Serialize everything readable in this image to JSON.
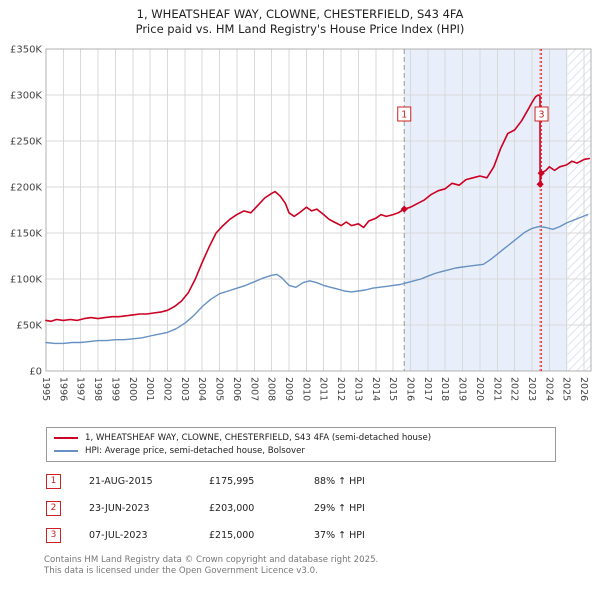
{
  "title": {
    "line1": "1, WHEATSHEAF WAY, CLOWNE, CHESTERFIELD, S43 4FA",
    "line2": "Price paid vs. HM Land Registry's House Price Index (HPI)"
  },
  "chart_data": {
    "type": "line",
    "title": "1, WHEATSHEAF WAY, CLOWNE, CHESTERFIELD, S43 4FA — Price paid vs. HM Land Registry's House Price Index (HPI)",
    "xlabel": "",
    "ylabel": "",
    "x_range": [
      1995,
      2026.4
    ],
    "y_range_k": [
      0,
      350
    ],
    "y_unit": "GBP_thousands",
    "grid": true,
    "legend_position": "bottom",
    "y_ticks": [
      {
        "v": 0,
        "label": "£0"
      },
      {
        "v": 50,
        "label": "£50K"
      },
      {
        "v": 100,
        "label": "£100K"
      },
      {
        "v": 150,
        "label": "£150K"
      },
      {
        "v": 200,
        "label": "£200K"
      },
      {
        "v": 250,
        "label": "£250K"
      },
      {
        "v": 300,
        "label": "£300K"
      },
      {
        "v": 350,
        "label": "£350K"
      }
    ],
    "x_ticks": [
      1995,
      1996,
      1997,
      1998,
      1999,
      2000,
      2001,
      2002,
      2003,
      2004,
      2005,
      2006,
      2007,
      2008,
      2009,
      2010,
      2011,
      2012,
      2013,
      2014,
      2015,
      2016,
      2017,
      2018,
      2019,
      2020,
      2021,
      2022,
      2023,
      2024,
      2025,
      2026
    ],
    "shaded_from": 2015.64,
    "hatch_from": 2025.05,
    "shade_color": "#e9effa",
    "hatch_color": "#c9d6e6",
    "series": [
      {
        "name": "1, WHEATSHEAF WAY, CLOWNE, CHESTERFIELD, S43 4FA (semi-detached house)",
        "color": "#cc0022",
        "width": 1.6,
        "points": [
          [
            1995.0,
            55
          ],
          [
            1995.3,
            54
          ],
          [
            1995.6,
            56
          ],
          [
            1996.0,
            55
          ],
          [
            1996.4,
            56
          ],
          [
            1996.8,
            55
          ],
          [
            1997.2,
            57
          ],
          [
            1997.6,
            58
          ],
          [
            1998.0,
            57
          ],
          [
            1998.4,
            58
          ],
          [
            1998.8,
            59
          ],
          [
            1999.2,
            59
          ],
          [
            1999.6,
            60
          ],
          [
            2000.0,
            61
          ],
          [
            2000.4,
            62
          ],
          [
            2000.8,
            62
          ],
          [
            2001.2,
            63
          ],
          [
            2001.6,
            64
          ],
          [
            2002.0,
            66
          ],
          [
            2002.4,
            70
          ],
          [
            2002.8,
            76
          ],
          [
            2003.2,
            85
          ],
          [
            2003.6,
            100
          ],
          [
            2004.0,
            118
          ],
          [
            2004.4,
            135
          ],
          [
            2004.8,
            150
          ],
          [
            2005.2,
            158
          ],
          [
            2005.6,
            165
          ],
          [
            2006.0,
            170
          ],
          [
            2006.4,
            174
          ],
          [
            2006.8,
            172
          ],
          [
            2007.2,
            180
          ],
          [
            2007.6,
            188
          ],
          [
            2008.0,
            193
          ],
          [
            2008.2,
            195
          ],
          [
            2008.5,
            190
          ],
          [
            2008.8,
            182
          ],
          [
            2009.0,
            172
          ],
          [
            2009.3,
            168
          ],
          [
            2009.6,
            172
          ],
          [
            2010.0,
            178
          ],
          [
            2010.3,
            174
          ],
          [
            2010.6,
            176
          ],
          [
            2011.0,
            170
          ],
          [
            2011.3,
            165
          ],
          [
            2011.6,
            162
          ],
          [
            2012.0,
            158
          ],
          [
            2012.3,
            162
          ],
          [
            2012.6,
            158
          ],
          [
            2013.0,
            160
          ],
          [
            2013.3,
            156
          ],
          [
            2013.6,
            163
          ],
          [
            2014.0,
            166
          ],
          [
            2014.3,
            170
          ],
          [
            2014.6,
            168
          ],
          [
            2015.0,
            170
          ],
          [
            2015.3,
            172
          ],
          [
            2015.64,
            176
          ],
          [
            2016.0,
            178
          ],
          [
            2016.4,
            182
          ],
          [
            2016.8,
            186
          ],
          [
            2017.2,
            192
          ],
          [
            2017.6,
            196
          ],
          [
            2018.0,
            198
          ],
          [
            2018.4,
            204
          ],
          [
            2018.8,
            202
          ],
          [
            2019.2,
            208
          ],
          [
            2019.6,
            210
          ],
          [
            2020.0,
            212
          ],
          [
            2020.4,
            210
          ],
          [
            2020.8,
            222
          ],
          [
            2021.2,
            242
          ],
          [
            2021.6,
            258
          ],
          [
            2022.0,
            262
          ],
          [
            2022.4,
            272
          ],
          [
            2022.8,
            285
          ],
          [
            2023.0,
            292
          ],
          [
            2023.2,
            298
          ],
          [
            2023.35,
            300
          ],
          [
            2023.46,
            299
          ],
          [
            2023.47,
            203
          ],
          [
            2023.53,
            215
          ],
          [
            2023.8,
            218
          ],
          [
            2024.0,
            222
          ],
          [
            2024.3,
            218
          ],
          [
            2024.6,
            222
          ],
          [
            2025.0,
            224
          ],
          [
            2025.3,
            228
          ],
          [
            2025.6,
            226
          ],
          [
            2026.0,
            230
          ],
          [
            2026.3,
            231
          ]
        ]
      },
      {
        "name": "HPI: Average price, semi-detached house, Bolsover",
        "color": "#6691c2",
        "width": 1.4,
        "points": [
          [
            1995.0,
            31
          ],
          [
            1995.5,
            30
          ],
          [
            1996.0,
            30
          ],
          [
            1996.5,
            31
          ],
          [
            1997.0,
            31
          ],
          [
            1997.5,
            32
          ],
          [
            1998.0,
            33
          ],
          [
            1998.5,
            33
          ],
          [
            1999.0,
            34
          ],
          [
            1999.5,
            34
          ],
          [
            2000.0,
            35
          ],
          [
            2000.5,
            36
          ],
          [
            2001.0,
            38
          ],
          [
            2001.5,
            40
          ],
          [
            2002.0,
            42
          ],
          [
            2002.5,
            46
          ],
          [
            2003.0,
            52
          ],
          [
            2003.5,
            60
          ],
          [
            2004.0,
            70
          ],
          [
            2004.5,
            78
          ],
          [
            2005.0,
            84
          ],
          [
            2005.5,
            87
          ],
          [
            2006.0,
            90
          ],
          [
            2006.5,
            93
          ],
          [
            2007.0,
            97
          ],
          [
            2007.5,
            101
          ],
          [
            2008.0,
            104
          ],
          [
            2008.3,
            105
          ],
          [
            2008.6,
            101
          ],
          [
            2009.0,
            93
          ],
          [
            2009.4,
            91
          ],
          [
            2009.8,
            96
          ],
          [
            2010.2,
            98
          ],
          [
            2010.6,
            96
          ],
          [
            2011.0,
            93
          ],
          [
            2011.4,
            91
          ],
          [
            2011.8,
            89
          ],
          [
            2012.2,
            87
          ],
          [
            2012.6,
            86
          ],
          [
            2013.0,
            87
          ],
          [
            2013.4,
            88
          ],
          [
            2013.8,
            90
          ],
          [
            2014.2,
            91
          ],
          [
            2014.6,
            92
          ],
          [
            2015.0,
            93
          ],
          [
            2015.4,
            94
          ],
          [
            2015.8,
            96
          ],
          [
            2016.2,
            98
          ],
          [
            2016.6,
            100
          ],
          [
            2017.0,
            103
          ],
          [
            2017.4,
            106
          ],
          [
            2017.8,
            108
          ],
          [
            2018.2,
            110
          ],
          [
            2018.6,
            112
          ],
          [
            2019.0,
            113
          ],
          [
            2019.4,
            114
          ],
          [
            2019.8,
            115
          ],
          [
            2020.2,
            116
          ],
          [
            2020.6,
            121
          ],
          [
            2021.0,
            127
          ],
          [
            2021.4,
            133
          ],
          [
            2021.8,
            139
          ],
          [
            2022.2,
            145
          ],
          [
            2022.6,
            151
          ],
          [
            2023.0,
            155
          ],
          [
            2023.4,
            157
          ],
          [
            2023.8,
            156
          ],
          [
            2024.2,
            154
          ],
          [
            2024.6,
            157
          ],
          [
            2025.0,
            161
          ],
          [
            2025.4,
            164
          ],
          [
            2025.8,
            167
          ],
          [
            2026.2,
            170
          ]
        ]
      }
    ],
    "annotations": [
      {
        "x": 2015.64,
        "label": "1",
        "style": "dashed",
        "color": "#999999"
      },
      {
        "x": 2023.47,
        "label": "",
        "style": "dotted",
        "color": "#ee3333"
      },
      {
        "x": 2023.55,
        "label": "3",
        "style": "dotted",
        "color": "#ee3333"
      }
    ],
    "sale_points": [
      {
        "x": 2015.64,
        "y_k": 176,
        "num": "1"
      },
      {
        "x": 2023.47,
        "y_k": 203,
        "num": "2"
      },
      {
        "x": 2023.53,
        "y_k": 215,
        "num": "3"
      }
    ]
  },
  "sales": [
    {
      "num": "1",
      "date": "21-AUG-2015",
      "price": "£175,995",
      "hpi": "88% ↑ HPI"
    },
    {
      "num": "2",
      "date": "23-JUN-2023",
      "price": "£203,000",
      "hpi": "29% ↑ HPI"
    },
    {
      "num": "3",
      "date": "07-JUL-2023",
      "price": "£215,000",
      "hpi": "37% ↑ HPI"
    }
  ],
  "footer": {
    "line1": "Contains HM Land Registry data © Crown copyright and database right 2025.",
    "line2": "This data is licensed under the Open Government Licence v3.0."
  }
}
